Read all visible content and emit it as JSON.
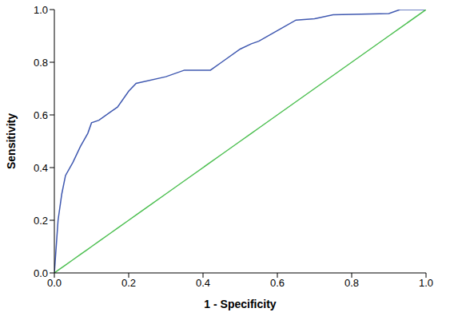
{
  "chart_data": {
    "type": "line",
    "x_label": "1 - Specificity",
    "y_label": "Sensitivity",
    "x": [
      0,
      0.005,
      0.01,
      0.02,
      0.03,
      0.05,
      0.07,
      0.09,
      0.1,
      0.12,
      0.15,
      0.17,
      0.2,
      0.22,
      0.3,
      0.35,
      0.42,
      0.45,
      0.5,
      0.53,
      0.55,
      0.6,
      0.65,
      0.7,
      0.75,
      0.9,
      0.93,
      1
    ],
    "series": [
      {
        "color": "#3f58b0",
        "values": [
          0,
          0.1,
          0.2,
          0.3,
          0.37,
          0.42,
          0.48,
          0.53,
          0.57,
          0.58,
          0.61,
          0.63,
          0.69,
          0.72,
          0.745,
          0.77,
          0.77,
          0.8,
          0.85,
          0.87,
          0.88,
          0.92,
          0.96,
          0.965,
          0.98,
          0.985,
          1,
          1
        ]
      },
      {
        "color": "#4cbf50",
        "values": [
          0,
          0.005,
          0.01,
          0.02,
          0.03,
          0.05,
          0.07,
          0.09,
          0.1,
          0.12,
          0.15,
          0.17,
          0.2,
          0.22,
          0.3,
          0.35,
          0.42,
          0.45,
          0.5,
          0.53,
          0.55,
          0.6,
          0.65,
          0.7,
          0.75,
          0.9,
          0.93,
          1
        ]
      }
    ],
    "xlim": [
      0,
      1
    ],
    "ylim": [
      0,
      1
    ],
    "xticks": [
      {
        "value": 0,
        "label": "0.0"
      },
      0.2,
      0.4,
      0.6,
      0.8,
      {
        "value": 1,
        "label": "1.0"
      }
    ],
    "yticks": [
      {
        "value": 0,
        "label": "0.0"
      },
      0.2,
      0.4,
      0.6,
      0.8,
      {
        "value": 1,
        "label": "1.0"
      }
    ],
    "grid": false
  }
}
